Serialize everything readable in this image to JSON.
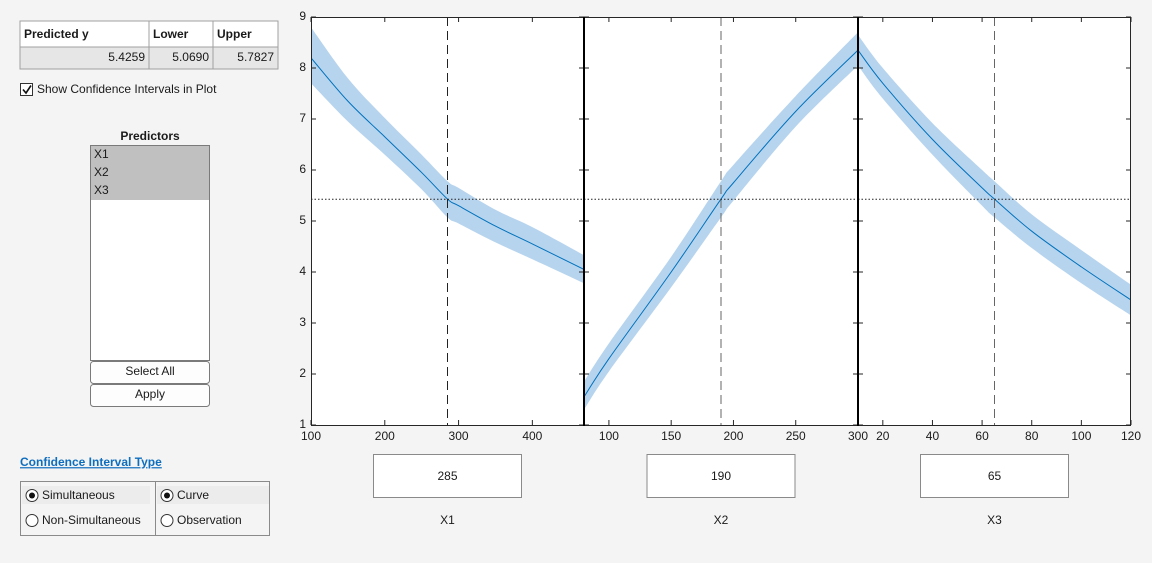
{
  "table": {
    "headers": [
      "Predicted y",
      "Lower",
      "Upper"
    ],
    "values": [
      {
        "value": 5.4259,
        "label": "5.4259"
      },
      {
        "value": 5.069,
        "label": "5.0690"
      },
      {
        "value": 5.7827,
        "label": "5.7827"
      }
    ]
  },
  "controls": {
    "checkbox_label": "Show Confidence Intervals in Plot"
  },
  "predictors": {
    "title": "Predictors",
    "items": [
      "X1",
      "X2",
      "X3"
    ]
  },
  "buttons": [
    "Select All",
    "Apply"
  ],
  "ci_type": {
    "title": "Confidence Interval Type",
    "groups": [
      [
        "Simultaneous",
        "Non-Simultaneous"
      ],
      [
        "Curve",
        "Observation"
      ]
    ]
  },
  "chart_data": [
    {
      "type": "line",
      "xlabel": "X1",
      "current_x": 285,
      "x": [
        100,
        150,
        200,
        250,
        285,
        300,
        350,
        400,
        470
      ],
      "values": [
        8.2,
        7.35,
        6.65,
        5.95,
        5.43,
        5.3,
        4.9,
        4.55,
        4.05
      ],
      "ci_lower": [
        7.7,
        6.95,
        6.3,
        5.62,
        5.07,
        4.95,
        4.58,
        4.25,
        3.78
      ],
      "ci_upper": [
        8.8,
        7.8,
        7.02,
        6.3,
        5.78,
        5.65,
        5.22,
        4.88,
        4.33
      ],
      "xlim": [
        100,
        470
      ],
      "xticks": [
        100,
        200,
        300,
        400
      ],
      "ylim": [
        1,
        9
      ],
      "yticks": [
        1,
        2,
        3,
        4,
        5,
        6,
        7,
        8,
        9
      ],
      "color": "#0072bd",
      "band_color": "#b7d4ee"
    },
    {
      "type": "line",
      "xlabel": "X2",
      "current_x": 190,
      "x": [
        80,
        100,
        150,
        190,
        200,
        250,
        300
      ],
      "values": [
        1.55,
        2.3,
        4.0,
        5.43,
        5.75,
        7.15,
        8.35
      ],
      "ci_lower": [
        1.3,
        2.05,
        3.7,
        5.07,
        5.4,
        6.85,
        8.05
      ],
      "ci_upper": [
        1.85,
        2.6,
        4.3,
        5.78,
        6.1,
        7.45,
        8.7
      ],
      "xlim": [
        80,
        300
      ],
      "xticks": [
        100,
        150,
        200,
        250,
        300
      ],
      "color": "#0072bd",
      "band_color": "#b7d4ee"
    },
    {
      "type": "line",
      "xlabel": "X3",
      "current_x": 65,
      "x": [
        10,
        20,
        40,
        60,
        65,
        80,
        100,
        120
      ],
      "values": [
        8.35,
        7.7,
        6.6,
        5.65,
        5.43,
        4.8,
        4.1,
        3.45
      ],
      "ci_lower": [
        8.05,
        7.4,
        6.3,
        5.3,
        5.07,
        4.47,
        3.78,
        3.15
      ],
      "ci_upper": [
        8.65,
        8.0,
        6.92,
        6.0,
        5.78,
        5.13,
        4.43,
        3.75
      ],
      "xlim": [
        10,
        120
      ],
      "xticks": [
        20,
        40,
        60,
        80,
        100,
        120
      ],
      "color": "#0072bd",
      "band_color": "#b7d4ee"
    }
  ]
}
